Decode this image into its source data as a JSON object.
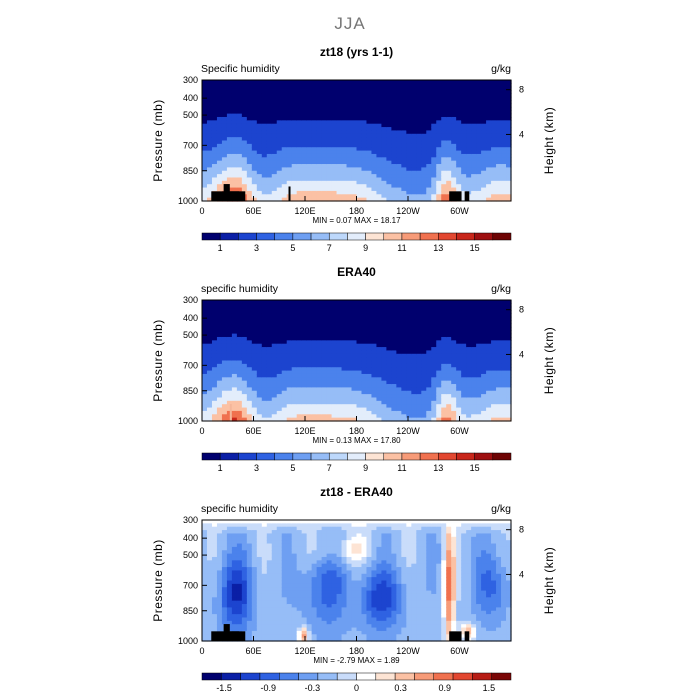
{
  "page": {
    "title": "JJA"
  },
  "chart_data": [
    {
      "type": "heatmap",
      "title": "zt18 (yrs 1-1)",
      "left_label": "Specific humidity",
      "units": "g/kg",
      "x_axis_ticks": [
        "0",
        "60E",
        "120E",
        "180",
        "120W",
        "60W"
      ],
      "ylabel": "Pressure (mb)",
      "y_axis_ticks": [
        "300",
        "400",
        "500",
        "700",
        "850",
        "1000"
      ],
      "right_axis_label": "Height (km)",
      "right_axis_ticks": [
        "8",
        "4"
      ],
      "stats": {
        "min_label": "MIN =",
        "min": "0.07",
        "max_label": "MAX =",
        "max": "18.17"
      },
      "colorbar": {
        "ticks": [
          "1",
          "3",
          "5",
          "7",
          "9",
          "11",
          "13",
          "15"
        ],
        "colors": [
          "#00006e",
          "#0a1fa6",
          "#1c44cf",
          "#2f62e2",
          "#4b82ec",
          "#6e9ff2",
          "#96bdf7",
          "#bdd8fb",
          "#e3edfb",
          "#fde4d4",
          "#fbc1a4",
          "#f79b78",
          "#f0714f",
          "#e24730",
          "#c8261a",
          "#9e0f10",
          "#6e0404"
        ]
      },
      "color_levels": [
        1,
        3,
        5,
        7,
        9,
        11,
        13,
        15
      ]
    },
    {
      "type": "heatmap",
      "title": "ERA40",
      "left_label": "specific humidity",
      "units": "g/kg",
      "x_axis_ticks": [
        "0",
        "60E",
        "120E",
        "180",
        "120W",
        "60W"
      ],
      "ylabel": "Pressure (mb)",
      "y_axis_ticks": [
        "300",
        "400",
        "500",
        "700",
        "850",
        "1000"
      ],
      "right_axis_label": "Height (km)",
      "right_axis_ticks": [
        "8",
        "4"
      ],
      "stats": {
        "min_label": "MIN =",
        "min": "0.13",
        "max_label": "MAX =",
        "max": "17.80"
      },
      "colorbar": {
        "ticks": [
          "1",
          "3",
          "5",
          "7",
          "9",
          "11",
          "13",
          "15"
        ],
        "colors": [
          "#00006e",
          "#0a1fa6",
          "#1c44cf",
          "#2f62e2",
          "#4b82ec",
          "#6e9ff2",
          "#96bdf7",
          "#bdd8fb",
          "#e3edfb",
          "#fde4d4",
          "#fbc1a4",
          "#f79b78",
          "#f0714f",
          "#e24730",
          "#c8261a",
          "#9e0f10",
          "#6e0404"
        ]
      },
      "color_levels": [
        1,
        3,
        5,
        7,
        9,
        11,
        13,
        15
      ]
    },
    {
      "type": "heatmap",
      "title": "zt18 - ERA40",
      "left_label": "specific humidity",
      "units": "g/kg",
      "x_axis_ticks": [
        "0",
        "60E",
        "120E",
        "180",
        "120W",
        "60W"
      ],
      "ylabel": "Pressure (mb)",
      "y_axis_ticks": [
        "300",
        "400",
        "500",
        "700",
        "850",
        "1000"
      ],
      "right_axis_label": "Height (km)",
      "right_axis_ticks": [
        "8",
        "4"
      ],
      "stats": {
        "min_label": "MIN =",
        "min": "-2.79",
        "max_label": "MAX =",
        "max": "1.89"
      },
      "colorbar": {
        "ticks": [
          "-1.5",
          "-0.9",
          "-0.3",
          "0",
          "0.3",
          "0.9",
          "1.5"
        ],
        "colors": [
          "#00006e",
          "#0a1fa6",
          "#1c44cf",
          "#2f62e2",
          "#4b82ec",
          "#6e9ff2",
          "#96bdf7",
          "#c9dcfa",
          "#ffffff",
          "#fde4d4",
          "#fbc1a4",
          "#f79b78",
          "#f0714f",
          "#e24730",
          "#b71c14",
          "#7a0606"
        ]
      },
      "color_levels": [
        -1.5,
        -0.9,
        -0.3,
        0,
        0.3,
        0.9,
        1.5
      ]
    }
  ]
}
